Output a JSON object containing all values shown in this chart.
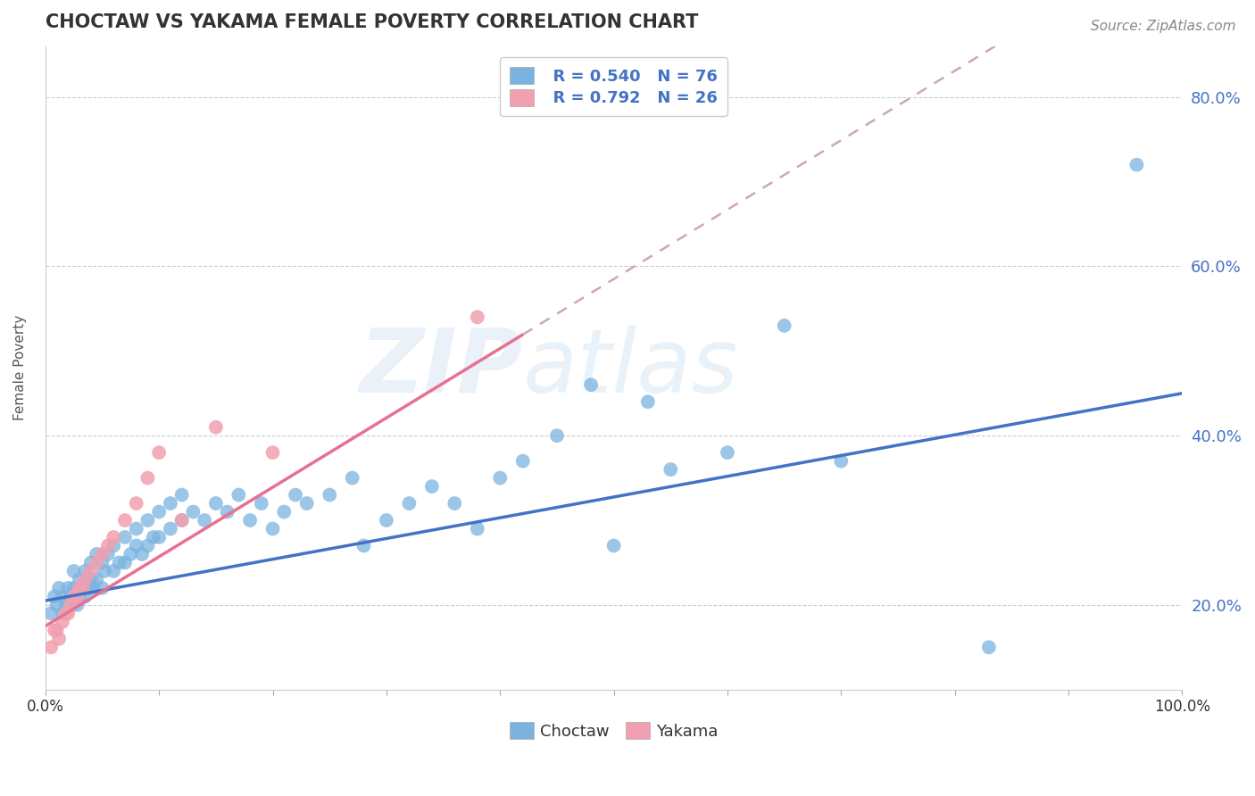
{
  "title": "CHOCTAW VS YAKAMA FEMALE POVERTY CORRELATION CHART",
  "source": "Source: ZipAtlas.com",
  "ylabel": "Female Poverty",
  "xlim": [
    0,
    1.0
  ],
  "ylim": [
    0.1,
    0.86
  ],
  "ytick_labels": [
    "20.0%",
    "40.0%",
    "60.0%",
    "80.0%"
  ],
  "ytick_values": [
    0.2,
    0.4,
    0.6,
    0.8
  ],
  "grid_color": "#cccccc",
  "background_color": "#ffffff",
  "choctaw_color": "#7ab3e0",
  "yakama_color": "#f0a0b0",
  "choctaw_line_color": "#4472c4",
  "yakama_line_color": "#e87090",
  "dashed_line_color": "#ccaaaa",
  "legend_R_choctaw": "R = 0.540",
  "legend_N_choctaw": "N = 76",
  "legend_R_yakama": "R = 0.792",
  "legend_N_yakama": "N = 26",
  "watermark_text": "ZIPatlas",
  "choctaw_x": [
    0.005,
    0.008,
    0.01,
    0.012,
    0.015,
    0.015,
    0.018,
    0.02,
    0.022,
    0.025,
    0.025,
    0.028,
    0.03,
    0.03,
    0.032,
    0.035,
    0.035,
    0.038,
    0.04,
    0.04,
    0.042,
    0.045,
    0.045,
    0.05,
    0.05,
    0.052,
    0.055,
    0.06,
    0.06,
    0.065,
    0.07,
    0.07,
    0.075,
    0.08,
    0.08,
    0.085,
    0.09,
    0.09,
    0.095,
    0.1,
    0.1,
    0.11,
    0.11,
    0.12,
    0.12,
    0.13,
    0.14,
    0.15,
    0.16,
    0.17,
    0.18,
    0.19,
    0.2,
    0.21,
    0.22,
    0.23,
    0.25,
    0.27,
    0.28,
    0.3,
    0.32,
    0.34,
    0.36,
    0.38,
    0.4,
    0.42,
    0.45,
    0.48,
    0.5,
    0.53,
    0.55,
    0.6,
    0.65,
    0.7,
    0.83,
    0.96
  ],
  "choctaw_y": [
    0.19,
    0.21,
    0.2,
    0.22,
    0.19,
    0.21,
    0.2,
    0.22,
    0.21,
    0.22,
    0.24,
    0.2,
    0.21,
    0.23,
    0.22,
    0.21,
    0.24,
    0.22,
    0.23,
    0.25,
    0.22,
    0.23,
    0.26,
    0.22,
    0.25,
    0.24,
    0.26,
    0.24,
    0.27,
    0.25,
    0.25,
    0.28,
    0.26,
    0.27,
    0.29,
    0.26,
    0.27,
    0.3,
    0.28,
    0.28,
    0.31,
    0.29,
    0.32,
    0.3,
    0.33,
    0.31,
    0.3,
    0.32,
    0.31,
    0.33,
    0.3,
    0.32,
    0.29,
    0.31,
    0.33,
    0.32,
    0.33,
    0.35,
    0.27,
    0.3,
    0.32,
    0.34,
    0.32,
    0.29,
    0.35,
    0.37,
    0.4,
    0.46,
    0.27,
    0.44,
    0.36,
    0.38,
    0.53,
    0.37,
    0.15,
    0.72
  ],
  "yakama_x": [
    0.005,
    0.008,
    0.01,
    0.012,
    0.015,
    0.018,
    0.02,
    0.022,
    0.025,
    0.028,
    0.03,
    0.033,
    0.035,
    0.04,
    0.045,
    0.05,
    0.055,
    0.06,
    0.07,
    0.08,
    0.09,
    0.1,
    0.12,
    0.15,
    0.2,
    0.38
  ],
  "yakama_y": [
    0.15,
    0.17,
    0.17,
    0.16,
    0.18,
    0.19,
    0.19,
    0.2,
    0.21,
    0.21,
    0.22,
    0.22,
    0.23,
    0.24,
    0.25,
    0.26,
    0.27,
    0.28,
    0.3,
    0.32,
    0.35,
    0.38,
    0.3,
    0.41,
    0.38,
    0.54
  ],
  "choctaw_intercept": 0.205,
  "choctaw_slope": 0.245,
  "yakama_intercept": 0.175,
  "yakama_slope": 0.82
}
